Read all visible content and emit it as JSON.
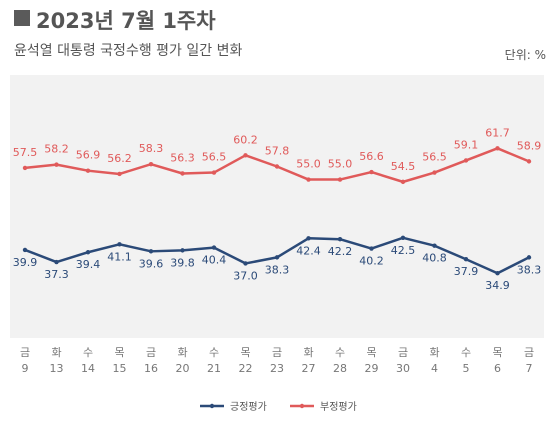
{
  "header": {
    "title": "2023년 7월 1주차",
    "subtitle": "윤석열 대통령 국정수행 평가 일간 변화",
    "unit": "단위: %"
  },
  "colors": {
    "positive": "#2b4a78",
    "negative": "#e05a5a",
    "plot_bg": "#f2f2f2"
  },
  "chart_data": {
    "type": "line",
    "categories": [
      {
        "day": "금",
        "date": "9"
      },
      {
        "day": "화",
        "date": "13"
      },
      {
        "day": "수",
        "date": "14"
      },
      {
        "day": "목",
        "date": "15"
      },
      {
        "day": "금",
        "date": "16"
      },
      {
        "day": "화",
        "date": "20"
      },
      {
        "day": "수",
        "date": "21"
      },
      {
        "day": "목",
        "date": "22"
      },
      {
        "day": "금",
        "date": "23"
      },
      {
        "day": "화",
        "date": "27"
      },
      {
        "day": "수",
        "date": "28"
      },
      {
        "day": "목",
        "date": "29"
      },
      {
        "day": "금",
        "date": "30"
      },
      {
        "day": "화",
        "date": "4"
      },
      {
        "day": "수",
        "date": "5"
      },
      {
        "day": "목",
        "date": "6"
      },
      {
        "day": "금",
        "date": "7"
      }
    ],
    "series": [
      {
        "name": "긍정평가",
        "values": [
          39.9,
          37.3,
          39.4,
          41.1,
          39.6,
          39.8,
          40.4,
          37.0,
          38.3,
          42.4,
          42.2,
          40.2,
          42.5,
          40.8,
          37.9,
          34.9,
          38.3
        ]
      },
      {
        "name": "부정평가",
        "values": [
          57.5,
          58.2,
          56.9,
          56.2,
          58.3,
          56.3,
          56.5,
          60.2,
          57.8,
          55.0,
          55.0,
          56.6,
          54.5,
          56.5,
          59.1,
          61.7,
          58.9
        ]
      }
    ],
    "legend_position": "bottom-center",
    "grid": false
  }
}
